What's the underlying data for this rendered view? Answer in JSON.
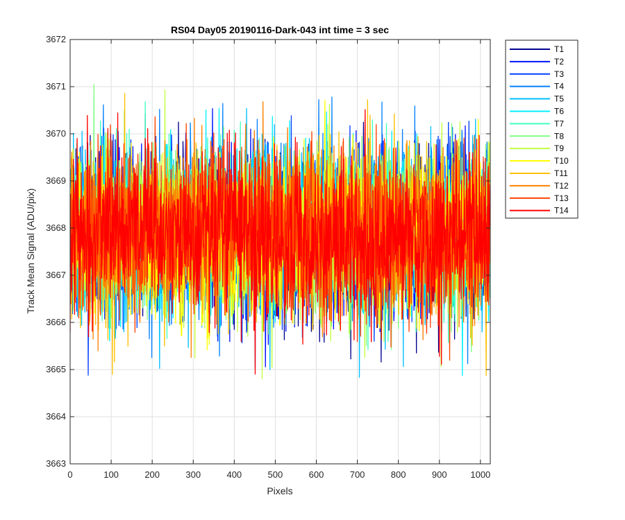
{
  "chart_data": {
    "type": "line",
    "title": "RS04 Day05 20190116-Dark-043 int time = 3 sec",
    "xlabel": "Pixels",
    "ylabel": "Track Mean Signal (ADU/pix)",
    "xlim": [
      0,
      1024
    ],
    "ylim": [
      3663,
      3672
    ],
    "xticks": [
      0,
      100,
      200,
      300,
      400,
      500,
      600,
      700,
      800,
      900,
      1000
    ],
    "yticks": [
      3663,
      3664,
      3665,
      3666,
      3667,
      3668,
      3669,
      3670,
      3671,
      3672
    ],
    "grid": true,
    "legend_position": "outside-top-right",
    "n_points": 1024,
    "center_value": 3667.9,
    "noise_std": 0.85,
    "series": [
      {
        "name": "T1",
        "color": "#00008f"
      },
      {
        "name": "T2",
        "color": "#0010ff"
      },
      {
        "name": "T3",
        "color": "#0040ff"
      },
      {
        "name": "T4",
        "color": "#0080ff"
      },
      {
        "name": "T5",
        "color": "#00bfff"
      },
      {
        "name": "T6",
        "color": "#00f0ff"
      },
      {
        "name": "T7",
        "color": "#40ffbf"
      },
      {
        "name": "T8",
        "color": "#80ff80"
      },
      {
        "name": "T9",
        "color": "#bfff40"
      },
      {
        "name": "T10",
        "color": "#ffff00"
      },
      {
        "name": "T11",
        "color": "#ffbf00"
      },
      {
        "name": "T12",
        "color": "#ff8000"
      },
      {
        "name": "T13",
        "color": "#ff4000"
      },
      {
        "name": "T14",
        "color": "#ff0000"
      }
    ]
  }
}
